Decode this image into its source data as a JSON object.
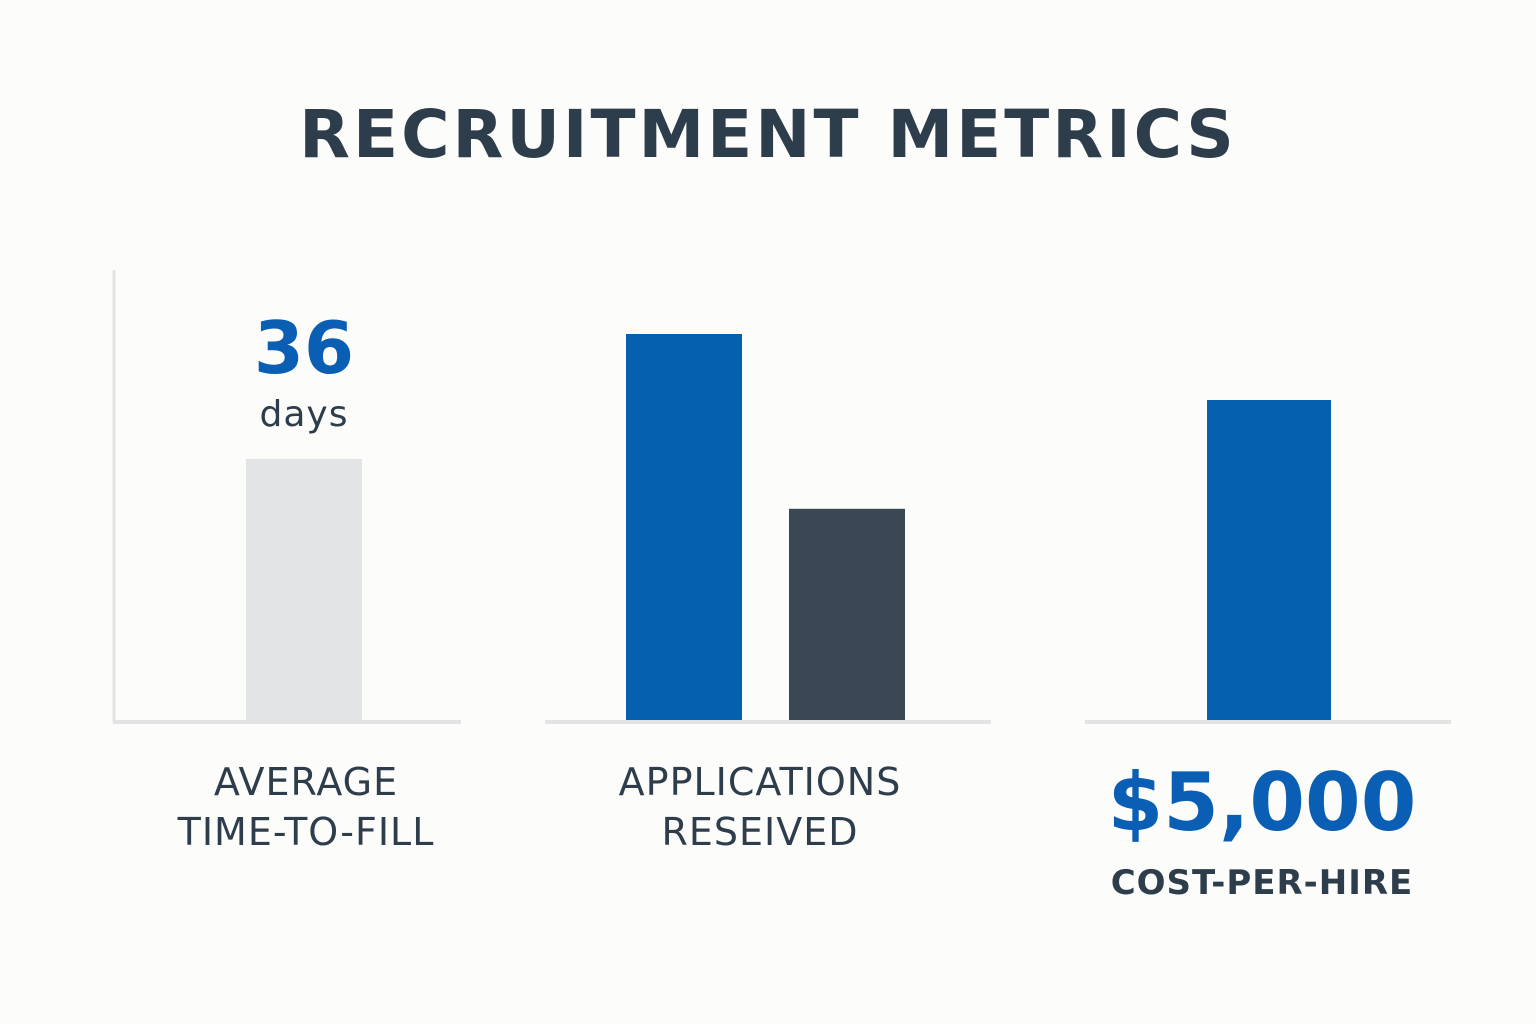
{
  "title": "RECRUITMENT METRICS",
  "colors": {
    "blue": "#0560b0",
    "dark": "#3a4856",
    "gray": "#e3e4e5",
    "axis": "#e3e3e3",
    "text": "#2e3d4b"
  },
  "chart_data": [
    {
      "type": "bar",
      "categories": [
        "AVERAGE TIME-TO-FILL"
      ],
      "values": [
        36
      ],
      "value_label": "36",
      "unit_label": "days",
      "xlabel": [
        "AVERAGE",
        "TIME-TO-FILL"
      ],
      "colors": [
        "#e3e4e5"
      ]
    },
    {
      "type": "bar",
      "categories": [
        "",
        ""
      ],
      "values": [
        53,
        29
      ],
      "xlabel": [
        "APPLICATIONS",
        "RESEIVED"
      ],
      "colors": [
        "#0560b0",
        "#3a4856"
      ]
    },
    {
      "type": "bar",
      "categories": [
        "COST-PER-HIRE"
      ],
      "values": [
        5000
      ],
      "value_label": "$5,000",
      "xlabel": [
        "COST-PER-HIRE"
      ],
      "colors": [
        "#0560b0"
      ]
    }
  ]
}
